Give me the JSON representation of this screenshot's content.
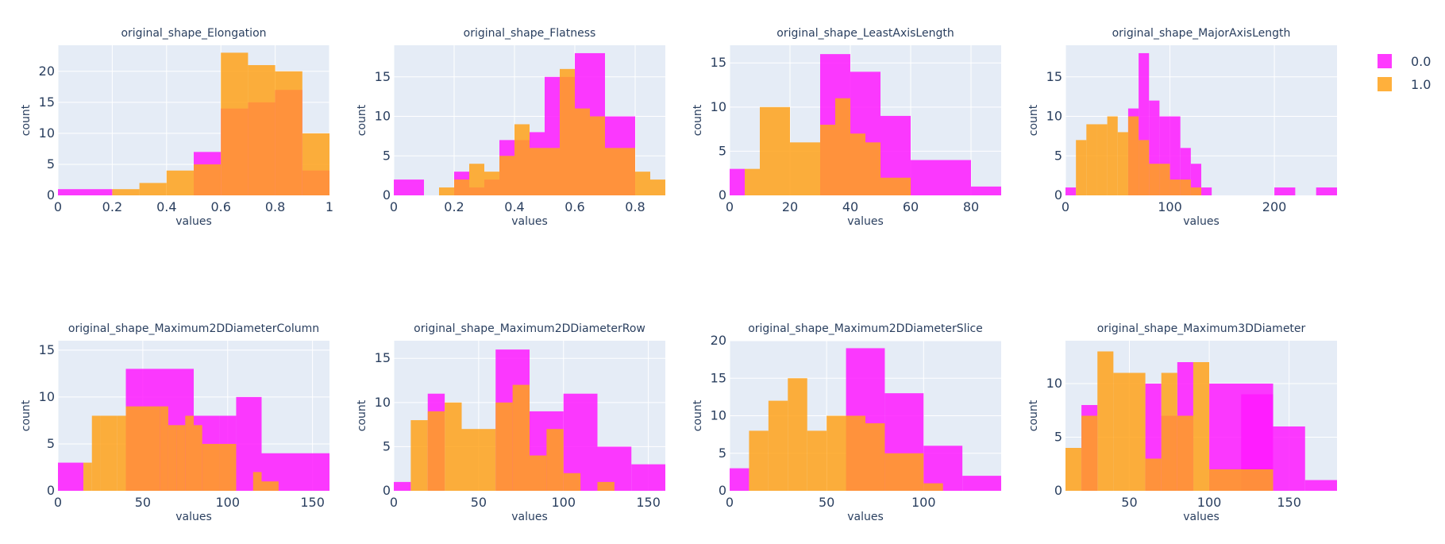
{
  "legend": [
    {
      "label": "0.0",
      "color": "#ff19ff",
      "opacity": 0.85
    },
    {
      "label": "1.0",
      "color": "#ffa21a",
      "opacity": 0.85
    }
  ],
  "chart_data": [
    {
      "type": "bar",
      "title": "original_shape_Elongation",
      "xlabel": "values",
      "ylabel": "count",
      "xlim": [
        0,
        1
      ],
      "ylim": [
        0,
        24.2
      ],
      "xticks": [
        0,
        0.2,
        0.4,
        0.6,
        0.8,
        1
      ],
      "xtick_labels": [
        "0",
        "0.2",
        "0.4",
        "0.6",
        "0.8",
        "1"
      ],
      "yticks": [
        0,
        5,
        10,
        15,
        20
      ],
      "series": [
        {
          "name": "0.0",
          "bins": [
            [
              0,
              0.2,
              1
            ],
            [
              0.5,
              0.6,
              7
            ],
            [
              0.6,
              0.7,
              14
            ],
            [
              0.7,
              0.8,
              15
            ],
            [
              0.8,
              0.9,
              17
            ],
            [
              0.9,
              1.0,
              4
            ]
          ]
        },
        {
          "name": "1.0",
          "bins": [
            [
              0.2,
              0.3,
              1
            ],
            [
              0.3,
              0.4,
              2
            ],
            [
              0.4,
              0.5,
              4
            ],
            [
              0.5,
              0.6,
              5
            ],
            [
              0.6,
              0.7,
              23
            ],
            [
              0.7,
              0.8,
              21
            ],
            [
              0.8,
              0.9,
              20
            ],
            [
              0.9,
              1.0,
              10
            ]
          ]
        }
      ]
    },
    {
      "type": "bar",
      "title": "original_shape_Flatness",
      "xlabel": "values",
      "ylabel": "count",
      "xlim": [
        0,
        0.9
      ],
      "ylim": [
        0,
        19
      ],
      "xticks": [
        0,
        0.2,
        0.4,
        0.6,
        0.8
      ],
      "xtick_labels": [
        "0",
        "0.2",
        "0.4",
        "0.6",
        "0.8"
      ],
      "yticks": [
        0,
        5,
        10,
        15
      ],
      "series": [
        {
          "name": "0.0",
          "bins": [
            [
              0,
              0.1,
              2
            ],
            [
              0.2,
              0.25,
              3
            ],
            [
              0.25,
              0.3,
              1
            ],
            [
              0.3,
              0.35,
              2
            ],
            [
              0.35,
              0.4,
              7
            ],
            [
              0.4,
              0.45,
              7
            ],
            [
              0.45,
              0.5,
              8
            ],
            [
              0.5,
              0.55,
              15
            ],
            [
              0.55,
              0.6,
              15
            ],
            [
              0.6,
              0.7,
              18
            ],
            [
              0.7,
              0.8,
              10
            ]
          ]
        },
        {
          "name": "1.0",
          "bins": [
            [
              0.15,
              0.2,
              1
            ],
            [
              0.2,
              0.25,
              2
            ],
            [
              0.25,
              0.3,
              4
            ],
            [
              0.3,
              0.35,
              3
            ],
            [
              0.35,
              0.4,
              5
            ],
            [
              0.4,
              0.45,
              9
            ],
            [
              0.45,
              0.5,
              6
            ],
            [
              0.5,
              0.55,
              6
            ],
            [
              0.55,
              0.6,
              16
            ],
            [
              0.6,
              0.65,
              11
            ],
            [
              0.65,
              0.7,
              10
            ],
            [
              0.7,
              0.8,
              6
            ],
            [
              0.8,
              0.85,
              3
            ],
            [
              0.85,
              0.9,
              2
            ]
          ]
        }
      ]
    },
    {
      "type": "bar",
      "title": "original_shape_LeastAxisLength",
      "xlabel": "values",
      "ylabel": "count",
      "xlim": [
        0,
        90
      ],
      "ylim": [
        0,
        17
      ],
      "xticks": [
        0,
        20,
        40,
        60,
        80
      ],
      "xtick_labels": [
        "0",
        "20",
        "40",
        "60",
        "80"
      ],
      "yticks": [
        0,
        5,
        10,
        15
      ],
      "series": [
        {
          "name": "0.0",
          "bins": [
            [
              0,
              5,
              3
            ],
            [
              30,
              40,
              16
            ],
            [
              40,
              50,
              14
            ],
            [
              50,
              60,
              9
            ],
            [
              60,
              70,
              4
            ],
            [
              70,
              80,
              4
            ],
            [
              80,
              90,
              1
            ]
          ]
        },
        {
          "name": "1.0",
          "bins": [
            [
              5,
              10,
              3
            ],
            [
              10,
              15,
              10
            ],
            [
              15,
              20,
              10
            ],
            [
              20,
              25,
              6
            ],
            [
              25,
              30,
              6
            ],
            [
              30,
              35,
              8
            ],
            [
              35,
              40,
              11
            ],
            [
              40,
              45,
              7
            ],
            [
              45,
              50,
              6
            ],
            [
              50,
              55,
              2
            ],
            [
              55,
              60,
              2
            ]
          ]
        }
      ]
    },
    {
      "type": "bar",
      "title": "original_shape_MajorAxisLength",
      "xlabel": "values",
      "ylabel": "count",
      "xlim": [
        0,
        260
      ],
      "ylim": [
        0,
        19
      ],
      "xticks": [
        0,
        100,
        200
      ],
      "xtick_labels": [
        "0",
        "100",
        "200"
      ],
      "yticks": [
        0,
        5,
        10,
        15
      ],
      "series": [
        {
          "name": "0.0",
          "bins": [
            [
              0,
              10,
              1
            ],
            [
              60,
              70,
              11
            ],
            [
              70,
              80,
              18
            ],
            [
              80,
              90,
              12
            ],
            [
              90,
              100,
              10
            ],
            [
              100,
              110,
              10
            ],
            [
              110,
              120,
              6
            ],
            [
              120,
              130,
              4
            ],
            [
              130,
              140,
              1
            ],
            [
              200,
              220,
              1
            ],
            [
              240,
              260,
              1
            ]
          ]
        },
        {
          "name": "1.0",
          "bins": [
            [
              10,
              20,
              7
            ],
            [
              20,
              30,
              9
            ],
            [
              30,
              40,
              9
            ],
            [
              40,
              50,
              10
            ],
            [
              50,
              60,
              8
            ],
            [
              60,
              70,
              10
            ],
            [
              70,
              80,
              7
            ],
            [
              80,
              90,
              4
            ],
            [
              90,
              100,
              4
            ],
            [
              100,
              110,
              2
            ],
            [
              110,
              120,
              2
            ],
            [
              120,
              130,
              1
            ]
          ]
        }
      ]
    },
    {
      "type": "bar",
      "title": "original_shape_Maximum2DDiameterColumn",
      "xlabel": "values",
      "ylabel": "count",
      "xlim": [
        0,
        160
      ],
      "ylim": [
        0,
        16
      ],
      "xticks": [
        0,
        50,
        100,
        150
      ],
      "xtick_labels": [
        "0",
        "50",
        "100",
        "150"
      ],
      "yticks": [
        0,
        5,
        10,
        15
      ],
      "series": [
        {
          "name": "0.0",
          "bins": [
            [
              0,
              15,
              3
            ],
            [
              40,
              80,
              13
            ],
            [
              80,
              95,
              8
            ],
            [
              95,
              105,
              8
            ],
            [
              105,
              120,
              10
            ],
            [
              120,
              160,
              4
            ]
          ]
        },
        {
          "name": "1.0",
          "bins": [
            [
              15,
              20,
              3
            ],
            [
              20,
              25,
              8
            ],
            [
              25,
              35,
              8
            ],
            [
              35,
              40,
              8
            ],
            [
              40,
              60,
              9
            ],
            [
              60,
              65,
              9
            ],
            [
              65,
              70,
              7
            ],
            [
              70,
              75,
              7
            ],
            [
              75,
              80,
              8
            ],
            [
              80,
              85,
              7
            ],
            [
              85,
              95,
              5
            ],
            [
              95,
              105,
              5
            ],
            [
              115,
              120,
              2
            ],
            [
              120,
              130,
              1
            ]
          ]
        }
      ]
    },
    {
      "type": "bar",
      "title": "original_shape_Maximum2DDiameterRow",
      "xlabel": "values",
      "ylabel": "count",
      "xlim": [
        0,
        160
      ],
      "ylim": [
        0,
        17
      ],
      "xticks": [
        0,
        50,
        100,
        150
      ],
      "xtick_labels": [
        "0",
        "50",
        "100",
        "150"
      ],
      "yticks": [
        0,
        5,
        10,
        15
      ],
      "series": [
        {
          "name": "0.0",
          "bins": [
            [
              0,
              10,
              1
            ],
            [
              20,
              30,
              11
            ],
            [
              60,
              80,
              16
            ],
            [
              80,
              100,
              9
            ],
            [
              100,
              120,
              11
            ],
            [
              120,
              140,
              5
            ],
            [
              140,
              160,
              3
            ]
          ]
        },
        {
          "name": "1.0",
          "bins": [
            [
              10,
              20,
              8
            ],
            [
              20,
              30,
              9
            ],
            [
              30,
              40,
              10
            ],
            [
              40,
              60,
              7
            ],
            [
              60,
              70,
              10
            ],
            [
              70,
              80,
              12
            ],
            [
              80,
              90,
              4
            ],
            [
              90,
              100,
              7
            ],
            [
              100,
              110,
              2
            ],
            [
              120,
              130,
              1
            ]
          ]
        }
      ]
    },
    {
      "type": "bar",
      "title": "original_shape_Maximum2DDiameterSlice",
      "xlabel": "values",
      "ylabel": "count",
      "xlim": [
        0,
        140
      ],
      "ylim": [
        0,
        20
      ],
      "xticks": [
        0,
        50,
        100
      ],
      "xtick_labels": [
        "0",
        "50",
        "100"
      ],
      "yticks": [
        0,
        5,
        10,
        15,
        20
      ],
      "series": [
        {
          "name": "0.0",
          "bins": [
            [
              0,
              10,
              3
            ],
            [
              60,
              80,
              19
            ],
            [
              80,
              100,
              13
            ],
            [
              100,
              120,
              6
            ],
            [
              120,
              140,
              2
            ]
          ]
        },
        {
          "name": "1.0",
          "bins": [
            [
              10,
              20,
              8
            ],
            [
              20,
              30,
              12
            ],
            [
              30,
              40,
              15
            ],
            [
              40,
              50,
              8
            ],
            [
              50,
              70,
              10
            ],
            [
              70,
              80,
              9
            ],
            [
              80,
              100,
              5
            ],
            [
              100,
              110,
              1
            ]
          ]
        }
      ]
    },
    {
      "type": "bar",
      "title": "original_shape_Maximum3DDiameter",
      "xlabel": "values",
      "ylabel": "count",
      "xlim": [
        10,
        180
      ],
      "ylim": [
        0,
        14
      ],
      "xticks": [
        50,
        100,
        150
      ],
      "xtick_labels": [
        "50",
        "100",
        "150"
      ],
      "yticks": [
        0,
        5,
        10
      ],
      "series": [
        {
          "name": "0.0",
          "bins": [
            [
              20,
              30,
              8
            ],
            [
              60,
              70,
              10
            ],
            [
              70,
              80,
              7
            ],
            [
              80,
              90,
              12
            ],
            [
              100,
              140,
              10
            ],
            [
              120,
              140,
              9
            ],
            [
              140,
              160,
              6
            ],
            [
              160,
              180,
              1
            ]
          ]
        },
        {
          "name": "1.0",
          "bins": [
            [
              10,
              20,
              4
            ],
            [
              20,
              30,
              7
            ],
            [
              30,
              40,
              13
            ],
            [
              40,
              60,
              11
            ],
            [
              60,
              70,
              3
            ],
            [
              70,
              80,
              11
            ],
            [
              80,
              90,
              7
            ],
            [
              90,
              100,
              12
            ],
            [
              100,
              140,
              2
            ]
          ]
        }
      ]
    }
  ]
}
